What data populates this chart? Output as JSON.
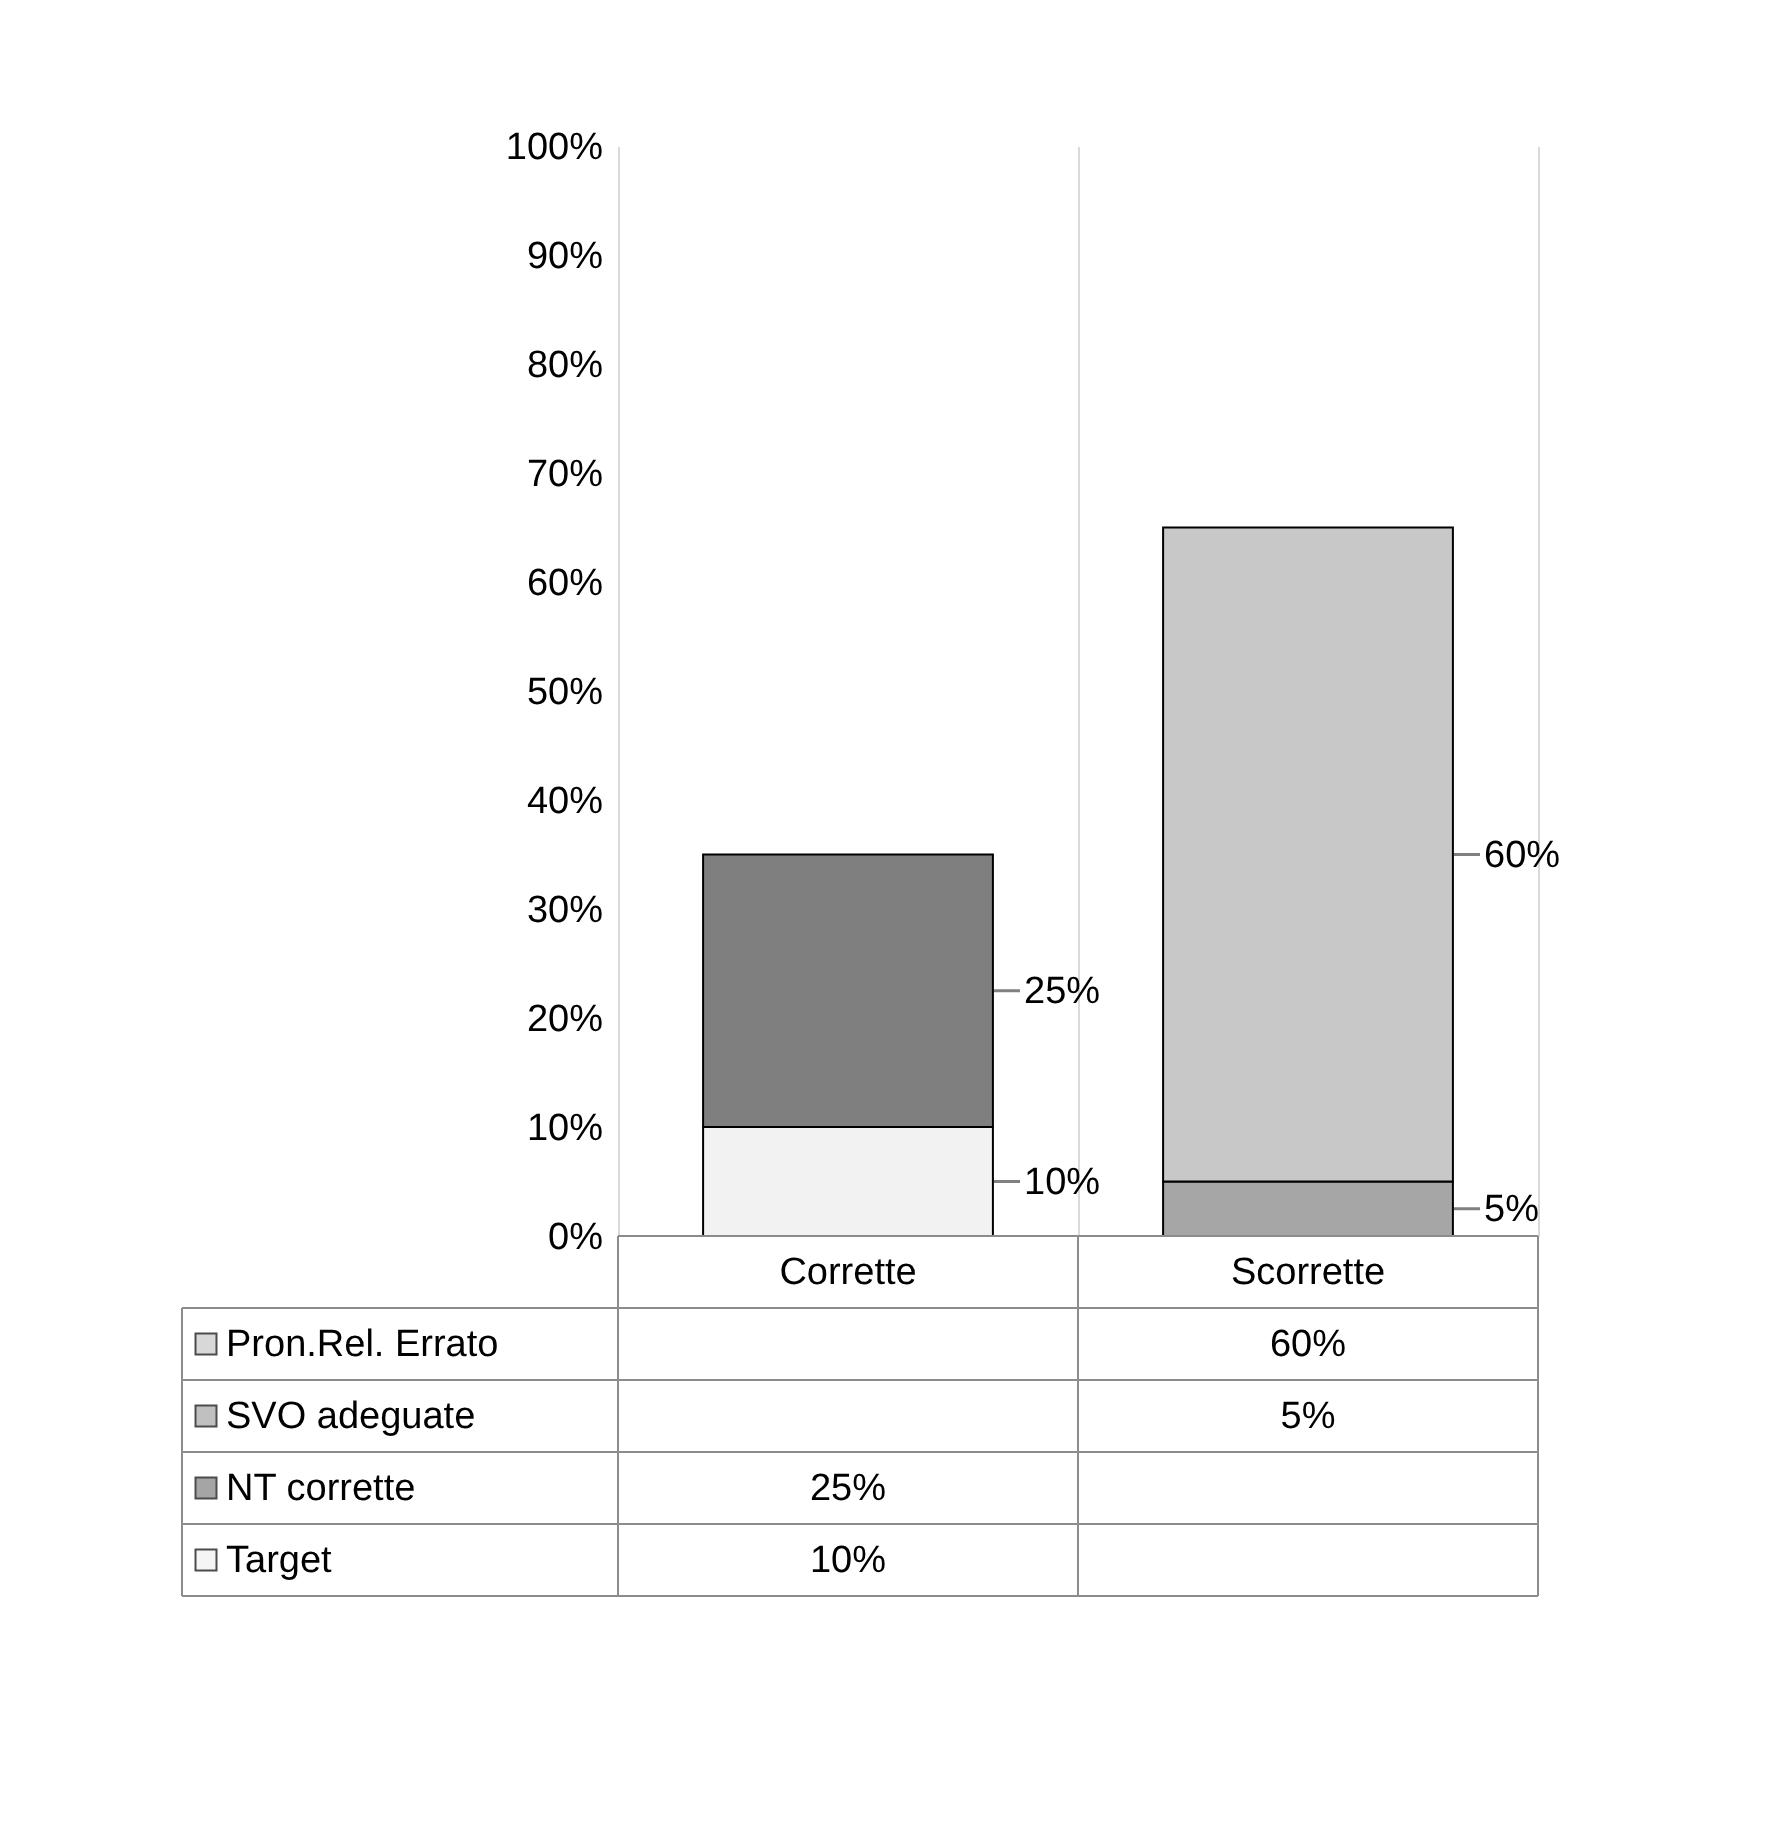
{
  "chart_data": {
    "type": "bar",
    "stacked": true,
    "categories": [
      "Corrette",
      "Scorrette"
    ],
    "series": [
      {
        "name": "Target",
        "color": "#f2f2f2",
        "values": [
          10,
          null
        ],
        "value_labels": [
          "10%",
          null
        ]
      },
      {
        "name": "NT corrette",
        "color": "#7f7f7f",
        "values": [
          25,
          null
        ],
        "value_labels": [
          "25%",
          null
        ]
      },
      {
        "name": "SVO adeguate",
        "color": "#a6a6a6",
        "values": [
          null,
          5
        ],
        "value_labels": [
          null,
          "5%"
        ]
      },
      {
        "name": "Pron.Rel. Errato",
        "color": "#c8c8c8",
        "values": [
          null,
          60
        ],
        "value_labels": [
          null,
          "60%"
        ]
      }
    ],
    "ylim": [
      0,
      100
    ],
    "yticks": [
      {
        "value": 0,
        "label": "0%"
      },
      {
        "value": 10,
        "label": "10%"
      },
      {
        "value": 20,
        "label": "20%"
      },
      {
        "value": 30,
        "label": "30%"
      },
      {
        "value": 40,
        "label": "40%"
      },
      {
        "value": 50,
        "label": "50%"
      },
      {
        "value": 60,
        "label": "60%"
      },
      {
        "value": 70,
        "label": "70%"
      },
      {
        "value": 80,
        "label": "80%"
      },
      {
        "value": 90,
        "label": "90%"
      },
      {
        "value": 100,
        "label": "100%"
      }
    ],
    "grid": "x",
    "legend": "bottom"
  }
}
